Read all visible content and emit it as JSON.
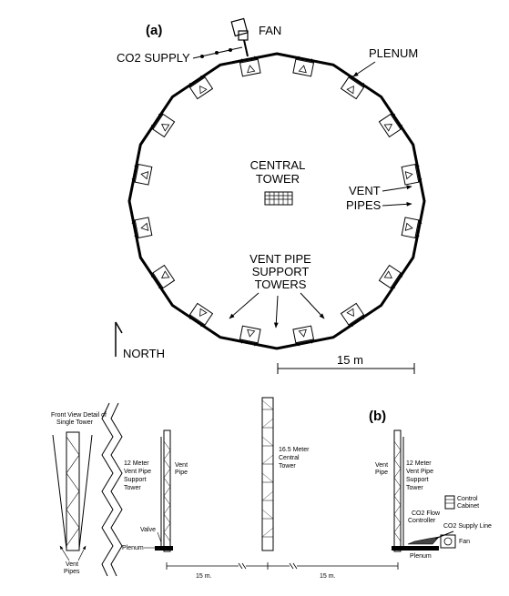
{
  "panel_a": {
    "label": "(a)",
    "fan": "FAN",
    "co2_supply": "CO2 SUPPLY",
    "plenum": "PLENUM",
    "central_tower": [
      "CENTRAL",
      "TOWER"
    ],
    "vent_pipes": [
      "VENT",
      "PIPES"
    ],
    "support_towers": [
      "VENT PIPE",
      "SUPPORT",
      "TOWERS"
    ],
    "north": "NORTH",
    "scale": "15 m"
  },
  "panel_b": {
    "label": "(b)",
    "front_view": [
      "Front View Detail of",
      "Single Tower"
    ],
    "vent_pipes": [
      "Vent",
      "Pipes"
    ],
    "left_tower": [
      "12 Meter",
      "Vent Pipe",
      "Support",
      "Tower"
    ],
    "left_vent_pipe": [
      "Vent",
      "Pipe"
    ],
    "valve": "Valve",
    "left_plenum": "Plenum",
    "central_tower": [
      "16.5 Meter",
      "Central",
      "Tower"
    ],
    "right_vent_pipe": [
      "Vent",
      "Pipe"
    ],
    "right_tower": [
      "12 Meter",
      "Vent Pipe",
      "Support",
      "Tower"
    ],
    "control_cabinet": [
      "Control",
      "Cabinet"
    ],
    "co2_flow_controller": [
      "CO2 Flow",
      "Controller"
    ],
    "co2_supply_line": "CO2 Supply Line",
    "fan": "Fan",
    "right_plenum": "Plenum",
    "scale_left": "15 m.",
    "scale_right": "15 m."
  }
}
